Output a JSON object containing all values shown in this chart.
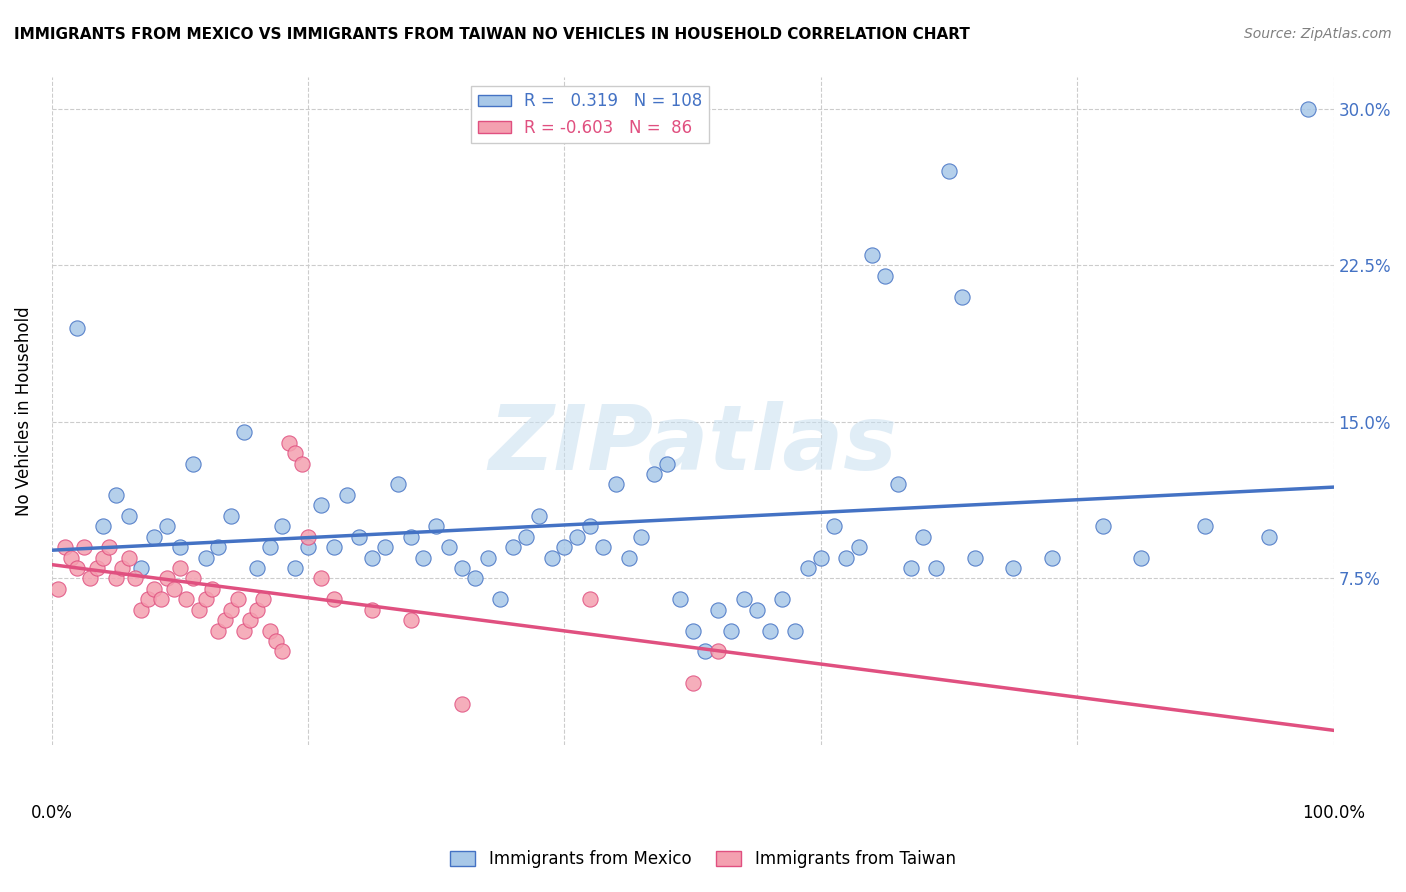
{
  "title": "IMMIGRANTS FROM MEXICO VS IMMIGRANTS FROM TAIWAN NO VEHICLES IN HOUSEHOLD CORRELATION CHART",
  "source": "Source: ZipAtlas.com",
  "ylabel": "No Vehicles in Household",
  "ytick_labels": [
    "7.5%",
    "15.0%",
    "22.5%",
    "30.0%"
  ],
  "ytick_values": [
    0.075,
    0.15,
    0.225,
    0.3
  ],
  "xlim": [
    0.0,
    1.0
  ],
  "ylim": [
    -0.005,
    0.315
  ],
  "mexico_R": 0.319,
  "mexico_N": 108,
  "taiwan_R": -0.603,
  "taiwan_N": 86,
  "mexico_color": "#a8c8e8",
  "mexico_line_color": "#4472c4",
  "taiwan_color": "#f4a0b0",
  "taiwan_line_color": "#e05080",
  "legend_mexico_label": "Immigrants from Mexico",
  "legend_taiwan_label": "Immigrants from Taiwan",
  "mexico_scatter_x": [
    0.02,
    0.04,
    0.05,
    0.06,
    0.07,
    0.08,
    0.09,
    0.1,
    0.11,
    0.12,
    0.13,
    0.14,
    0.15,
    0.16,
    0.17,
    0.18,
    0.19,
    0.2,
    0.21,
    0.22,
    0.23,
    0.24,
    0.25,
    0.26,
    0.27,
    0.28,
    0.29,
    0.3,
    0.31,
    0.32,
    0.33,
    0.34,
    0.35,
    0.36,
    0.37,
    0.38,
    0.39,
    0.4,
    0.41,
    0.42,
    0.43,
    0.44,
    0.45,
    0.46,
    0.47,
    0.48,
    0.49,
    0.5,
    0.51,
    0.52,
    0.53,
    0.54,
    0.55,
    0.56,
    0.57,
    0.58,
    0.59,
    0.6,
    0.61,
    0.62,
    0.63,
    0.64,
    0.65,
    0.66,
    0.67,
    0.68,
    0.69,
    0.7,
    0.71,
    0.72,
    0.75,
    0.78,
    0.82,
    0.85,
    0.9,
    0.95,
    0.98
  ],
  "mexico_scatter_y": [
    0.195,
    0.1,
    0.115,
    0.105,
    0.08,
    0.095,
    0.1,
    0.09,
    0.13,
    0.085,
    0.09,
    0.105,
    0.145,
    0.08,
    0.09,
    0.1,
    0.08,
    0.09,
    0.11,
    0.09,
    0.115,
    0.095,
    0.085,
    0.09,
    0.12,
    0.095,
    0.085,
    0.1,
    0.09,
    0.08,
    0.075,
    0.085,
    0.065,
    0.09,
    0.095,
    0.105,
    0.085,
    0.09,
    0.095,
    0.1,
    0.09,
    0.12,
    0.085,
    0.095,
    0.125,
    0.13,
    0.065,
    0.05,
    0.04,
    0.06,
    0.05,
    0.065,
    0.06,
    0.05,
    0.065,
    0.05,
    0.08,
    0.085,
    0.1,
    0.085,
    0.09,
    0.23,
    0.22,
    0.12,
    0.08,
    0.095,
    0.08,
    0.27,
    0.21,
    0.085,
    0.08,
    0.085,
    0.1,
    0.085,
    0.1,
    0.095,
    0.3
  ],
  "taiwan_scatter_x": [
    0.005,
    0.01,
    0.015,
    0.02,
    0.025,
    0.03,
    0.035,
    0.04,
    0.045,
    0.05,
    0.055,
    0.06,
    0.065,
    0.07,
    0.075,
    0.08,
    0.085,
    0.09,
    0.095,
    0.1,
    0.105,
    0.11,
    0.115,
    0.12,
    0.125,
    0.13,
    0.135,
    0.14,
    0.145,
    0.15,
    0.155,
    0.16,
    0.165,
    0.17,
    0.175,
    0.18,
    0.185,
    0.19,
    0.195,
    0.2,
    0.21,
    0.22,
    0.25,
    0.28,
    0.32,
    0.42,
    0.5,
    0.52
  ],
  "taiwan_scatter_y": [
    0.07,
    0.09,
    0.085,
    0.08,
    0.09,
    0.075,
    0.08,
    0.085,
    0.09,
    0.075,
    0.08,
    0.085,
    0.075,
    0.06,
    0.065,
    0.07,
    0.065,
    0.075,
    0.07,
    0.08,
    0.065,
    0.075,
    0.06,
    0.065,
    0.07,
    0.05,
    0.055,
    0.06,
    0.065,
    0.05,
    0.055,
    0.06,
    0.065,
    0.05,
    0.045,
    0.04,
    0.14,
    0.135,
    0.13,
    0.095,
    0.075,
    0.065,
    0.06,
    0.055,
    0.015,
    0.065,
    0.025,
    0.04
  ]
}
